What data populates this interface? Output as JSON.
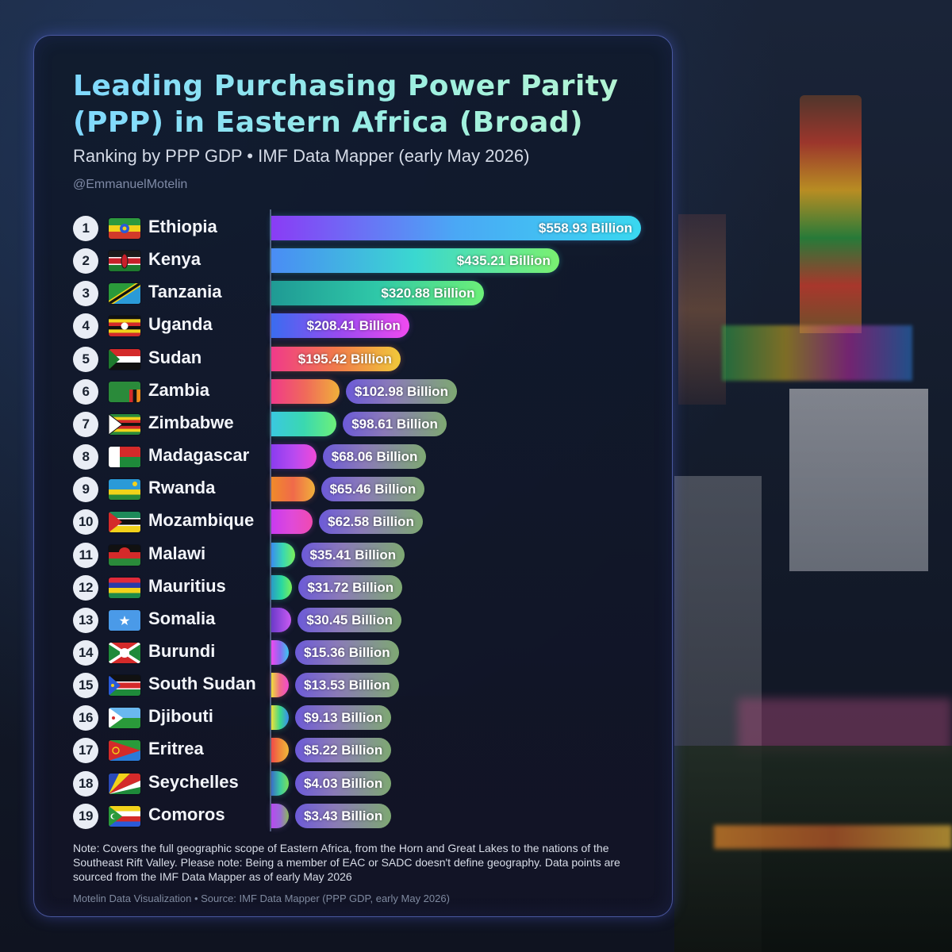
{
  "header": {
    "title_line1": "Leading Purchasing Power Parity",
    "title_line2": "(PPP) in Eastern Africa (Broad)",
    "subtitle": "Ranking by PPP GDP • IMF Data Mapper (early May 2026)",
    "handle": "@EmmanuelMotelin"
  },
  "footer": {
    "note": "Note: Covers the full geographic scope of Eastern Africa, from the Horn and Great Lakes to the nations of the Southeast Rift Valley. Please note: Being a member of EAC or SADC doesn't define geography. Data points are sourced from the IMF Data Mapper as of early May 2026",
    "source": "Motelin Data Visualization • Source: IMF Data Mapper (PPP GDP, early May 2026)"
  },
  "chart_data": {
    "type": "bar",
    "orientation": "horizontal",
    "unit": "Billion",
    "title": "Leading Purchasing Power Parity (PPP) in Eastern Africa (Broad)",
    "subtitle": "Ranking by PPP GDP • IMF Data Mapper (early May 2026)",
    "grid": false,
    "rows": [
      {
        "rank": "1",
        "country": "Ethiopia",
        "value": 558.93,
        "label": "$558.93 Billion",
        "flag": "ethiopia",
        "gradient": [
          "#8a3cf5",
          "#4aa8f5",
          "#3ad8f0"
        ]
      },
      {
        "rank": "2",
        "country": "Kenya",
        "value": 435.21,
        "label": "$435.21 Billion",
        "flag": "kenya",
        "gradient": [
          "#4a8cf5",
          "#3ad8d0",
          "#7af070"
        ]
      },
      {
        "rank": "3",
        "country": "Tanzania",
        "value": 320.88,
        "label": "$320.88 Billion",
        "flag": "tanzania",
        "gradient": [
          "#1f9a94",
          "#2fc8a8",
          "#6cf078"
        ]
      },
      {
        "rank": "4",
        "country": "Uganda",
        "value": 208.41,
        "label": "$208.41 Billion",
        "flag": "uganda",
        "gradient": [
          "#3a6cf0",
          "#9a4af0",
          "#f04af0"
        ]
      },
      {
        "rank": "5",
        "country": "Sudan",
        "value": 195.42,
        "label": "$195.42 Billion",
        "flag": "sudan",
        "gradient": [
          "#f03a8a",
          "#f07a4a",
          "#f0c83a"
        ]
      },
      {
        "rank": "6",
        "country": "Zambia",
        "value": 102.98,
        "label": "$102.98 Billion",
        "flag": "zambia",
        "gradient": [
          "#f03a8a",
          "#f06a5a",
          "#f0b03a"
        ]
      },
      {
        "rank": "7",
        "country": "Zimbabwe",
        "value": 98.61,
        "label": "$98.61 Billion",
        "flag": "zimbabwe",
        "gradient": [
          "#3ac8e0",
          "#3ad8b0",
          "#6cf07a"
        ]
      },
      {
        "rank": "8",
        "country": "Madagascar",
        "value": 68.06,
        "label": "$68.06 Billion",
        "flag": "madagascar",
        "gradient": [
          "#8a3cf0",
          "#b84af0",
          "#f04ad8"
        ]
      },
      {
        "rank": "9",
        "country": "Rwanda",
        "value": 65.46,
        "label": "$65.46 Billion",
        "flag": "rwanda",
        "gradient": [
          "#f08a2a",
          "#f06a4a",
          "#f0b03a"
        ]
      },
      {
        "rank": "10",
        "country": "Mozambique",
        "value": 62.58,
        "label": "$62.58 Billion",
        "flag": "mozambique",
        "gradient": [
          "#c83af0",
          "#e04ad8",
          "#f04ab0"
        ]
      },
      {
        "rank": "11",
        "country": "Malawi",
        "value": 35.41,
        "label": "$35.41 Billion",
        "flag": "malawi",
        "gradient": [
          "#3a8cf0",
          "#3ad8b0",
          "#7af05a"
        ]
      },
      {
        "rank": "12",
        "country": "Mauritius",
        "value": 31.72,
        "label": "$31.72 Billion",
        "flag": "mauritius",
        "gradient": [
          "#2a9ac8",
          "#2ad8a0",
          "#7af05a"
        ]
      },
      {
        "rank": "13",
        "country": "Somalia",
        "value": 30.45,
        "label": "$30.45 Billion",
        "flag": "somalia",
        "gradient": [
          "#6a3ac8",
          "#9a4ae0",
          "#c85af0"
        ]
      },
      {
        "rank": "14",
        "country": "Burundi",
        "value": 15.36,
        "label": "$15.36 Billion",
        "flag": "burundi",
        "gradient": [
          "#f04af0",
          "#8a6af0",
          "#3ac8f0"
        ]
      },
      {
        "rank": "15",
        "country": "South Sudan",
        "value": 13.53,
        "label": "$13.53 Billion",
        "flag": "south-sudan",
        "gradient": [
          "#f0e03a",
          "#f06a8a",
          "#f04ad0"
        ]
      },
      {
        "rank": "16",
        "country": "Djibouti",
        "value": 9.13,
        "label": "$9.13 Billion",
        "flag": "djibouti",
        "gradient": [
          "#f0e03a",
          "#3ad88a",
          "#3a8cf0"
        ]
      },
      {
        "rank": "17",
        "country": "Eritrea",
        "value": 5.22,
        "label": "$5.22 Billion",
        "flag": "eritrea",
        "gradient": [
          "#f04a4a",
          "#f08a3a",
          "#f0b83a"
        ]
      },
      {
        "rank": "18",
        "country": "Seychelles",
        "value": 4.03,
        "label": "$4.03 Billion",
        "flag": "seychelles",
        "gradient": [
          "#3a6cc8",
          "#3ac8a0",
          "#7ae05a"
        ]
      },
      {
        "rank": "19",
        "country": "Comoros",
        "value": 3.43,
        "label": "$3.43 Billion",
        "flag": "comoros",
        "gradient": [
          "#b84af0",
          "#9a6ad8",
          "#8ab85a"
        ]
      }
    ]
  }
}
